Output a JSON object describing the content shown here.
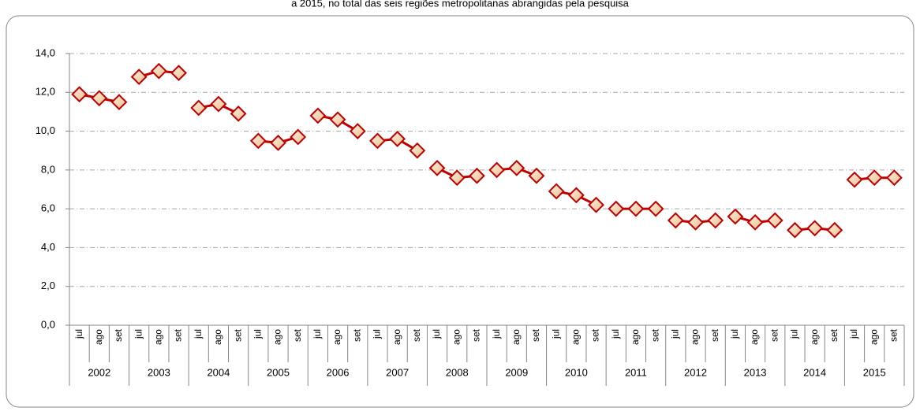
{
  "chart_data": {
    "type": "line",
    "title": "a 2015, no total das seis regiões metropolitanas abrangidas pela pesquisa",
    "categories": [
      "jul",
      "ago",
      "set",
      "jul",
      "ago",
      "set",
      "jul",
      "ago",
      "set",
      "jul",
      "ago",
      "set",
      "jul",
      "ago",
      "set",
      "jul",
      "ago",
      "set",
      "jul",
      "ago",
      "set",
      "jul",
      "ago",
      "set",
      "jul",
      "ago",
      "set",
      "jul",
      "ago",
      "set",
      "jul",
      "ago",
      "set",
      "jul",
      "ago",
      "set",
      "jul",
      "ago",
      "set",
      "jul",
      "ago",
      "set"
    ],
    "category_groups": [
      "2002",
      "2003",
      "2004",
      "2005",
      "2006",
      "2007",
      "2008",
      "2009",
      "2010",
      "2011",
      "2012",
      "2013",
      "2014",
      "2015"
    ],
    "values": [
      11.9,
      11.7,
      11.5,
      12.8,
      13.1,
      13.0,
      11.2,
      11.4,
      10.9,
      9.5,
      9.4,
      9.7,
      10.8,
      10.6,
      10.0,
      9.5,
      9.6,
      9.0,
      8.1,
      7.6,
      7.7,
      8.0,
      8.1,
      7.7,
      6.9,
      6.7,
      6.2,
      6.0,
      6.0,
      6.0,
      5.4,
      5.3,
      5.4,
      5.6,
      5.3,
      5.4,
      4.9,
      5.0,
      4.9,
      7.5,
      7.6,
      7.6
    ],
    "color": "#c00000",
    "ylim": [
      0,
      14
    ],
    "yticks": [
      {
        "value": 0,
        "label": "0,0"
      },
      {
        "value": 2,
        "label": "2,0"
      },
      {
        "value": 4,
        "label": "4,0"
      },
      {
        "value": 6,
        "label": "6,0"
      },
      {
        "value": 8,
        "label": "8,0"
      },
      {
        "value": 10,
        "label": "10,0"
      },
      {
        "value": 12,
        "label": "12,0"
      },
      {
        "value": 14,
        "label": "14,0"
      }
    ],
    "grid": true
  }
}
